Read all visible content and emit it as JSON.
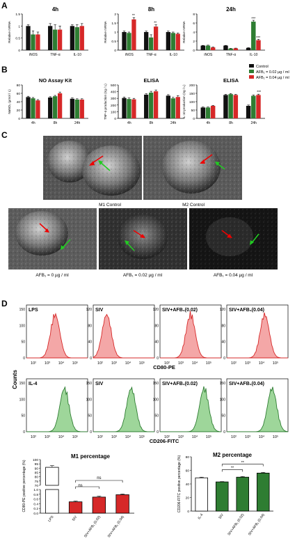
{
  "panel_letters": [
    "A",
    "B",
    "C",
    "D"
  ],
  "legend": {
    "items": [
      {
        "label": "Control",
        "color": "#000000"
      },
      {
        "label": "AFB₁ = 0.02 µg / ml",
        "color": "#2e7d32"
      },
      {
        "label": "AFB₁ = 0.04 µg / ml",
        "color": "#d32f2f"
      }
    ]
  },
  "colors": {
    "control": "#111111",
    "afb002": "#2e7d32",
    "afb004": "#d62828",
    "hist_red_fill": "#f4a7a7",
    "hist_red_line": "#d62828",
    "hist_green_fill": "#9ed69a",
    "hist_green_line": "#2e7d32"
  },
  "panelC": {
    "top_labels": [
      "M1 Control",
      "M2 Control"
    ],
    "bottom_labels": [
      "AFB₁ = 0 µg / ml",
      "AFB₁ = 0.02 µg / ml",
      "AFB₁ = 0.04 µg / ml"
    ]
  },
  "panelD": {
    "counts_label": "Counts",
    "row1_xlabel": "CD80-PE",
    "row2_xlabel": "CD206-FITC",
    "row1_titles": [
      "LPS",
      "SIV",
      "SIV+AFB₁(0.02)",
      "SIV+AFB₁(0.04)"
    ],
    "row2_titles": [
      "IL-4",
      "SIV",
      "SIV+AFB₁(0.02)",
      "SIV+AFB₁(0.04)"
    ],
    "y_ticks_per_hist": [
      [
        "0",
        "50",
        "100",
        "150"
      ],
      [
        "0",
        "40",
        "80",
        "120"
      ],
      [
        "0",
        "40",
        "80",
        "120"
      ],
      [
        "0",
        "40",
        "80",
        "120"
      ],
      [
        "0",
        "50",
        "100",
        "150"
      ],
      [
        "0",
        "50",
        "100",
        "150"
      ],
      [
        "0",
        "50",
        "100",
        "150"
      ],
      [
        "0",
        "50",
        "100",
        "150"
      ]
    ],
    "x_ticks": [
      "10²",
      "10³",
      "10⁴",
      "10⁵"
    ]
  },
  "chart_data": [
    {
      "id": "A-4h",
      "type": "bar",
      "title": "4h",
      "ylabel": "Relative mRNA",
      "categories": [
        "iNOS",
        "TNF-α",
        "IL-10"
      ],
      "ylim": [
        0,
        1.5
      ],
      "yticks": [
        0,
        0.5,
        1.0,
        1.5
      ],
      "series": [
        {
          "name": "Control",
          "values": [
            1.0,
            1.0,
            1.0
          ],
          "errors": [
            0.05,
            0.1,
            0.05
          ]
        },
        {
          "name": "AFB₁ = 0.02 µg / ml",
          "values": [
            0.65,
            0.85,
            0.95
          ],
          "errors": [
            0.15,
            0.2,
            0.1
          ]
        },
        {
          "name": "AFB₁ = 0.04 µg / ml",
          "values": [
            0.65,
            0.85,
            1.0
          ],
          "errors": [
            0.1,
            0.15,
            0.1
          ]
        }
      ]
    },
    {
      "id": "A-8h",
      "type": "bar",
      "title": "8h",
      "ylabel": "Relative mRNA",
      "categories": [
        "iNOS",
        "TNF-α",
        "IL-10"
      ],
      "ylim": [
        0,
        2.0
      ],
      "yticks": [
        0,
        0.5,
        1.0,
        1.5,
        2.0
      ],
      "series": [
        {
          "name": "Control",
          "values": [
            1.0,
            1.0,
            1.0
          ],
          "errors": [
            0.05,
            0.05,
            0.05
          ]
        },
        {
          "name": "AFB₁ = 0.02 µg / ml",
          "values": [
            0.95,
            0.7,
            0.95
          ],
          "errors": [
            0.05,
            0.15,
            0.05
          ]
        },
        {
          "name": "AFB₁ = 0.04 µg / ml",
          "values": [
            1.7,
            1.3,
            0.9
          ],
          "errors": [
            0.1,
            0.1,
            0.05
          ]
        }
      ],
      "annotations": [
        "**",
        "**"
      ]
    },
    {
      "id": "A-24h",
      "type": "bar",
      "title": "24h",
      "ylabel": "Relative mRNA",
      "categories": [
        "iNOS",
        "TNF-α",
        "IL-10"
      ],
      "ylim": [
        0,
        8
      ],
      "yticks": [
        0,
        2,
        4,
        6,
        8
      ],
      "series": [
        {
          "name": "Control",
          "values": [
            1.0,
            1.0,
            0.5
          ],
          "errors": [
            0.05,
            0.05,
            0.05
          ]
        },
        {
          "name": "AFB₁ = 0.02 µg / ml",
          "values": [
            1.0,
            0.35,
            6.3
          ],
          "errors": [
            0.1,
            0.05,
            0.3
          ]
        },
        {
          "name": "AFB₁ = 0.04 µg / ml",
          "values": [
            0.6,
            0.4,
            2.2
          ],
          "errors": [
            0.1,
            0.05,
            0.2
          ]
        }
      ],
      "annotations": [
        "***",
        "***"
      ]
    },
    {
      "id": "B-NO",
      "type": "bar",
      "title": "NO Assay Kit",
      "ylabel": "NaNO₂ (µmol / L)",
      "categories": [
        "4h",
        "8h",
        "24h"
      ],
      "ylim": [
        0,
        80
      ],
      "yticks": [
        0,
        20,
        40,
        60,
        80
      ],
      "series": [
        {
          "name": "Control",
          "values": [
            51,
            50,
            47
          ],
          "errors": [
            2,
            2,
            2
          ]
        },
        {
          "name": "AFB₁ = 0.02 µg / ml",
          "values": [
            48,
            53,
            45
          ],
          "errors": [
            2,
            2,
            2
          ]
        },
        {
          "name": "AFB₁ = 0.04 µg / ml",
          "values": [
            43,
            60,
            45
          ],
          "errors": [
            2,
            3,
            2
          ]
        }
      ]
    },
    {
      "id": "B-TNF",
      "type": "bar",
      "title": "ELISA",
      "ylabel": "TNF-α production (ng / L)",
      "categories": [
        "4h",
        "8h",
        "24h"
      ],
      "ylim": [
        0,
        500
      ],
      "yticks": [
        0,
        100,
        200,
        300,
        400,
        500
      ],
      "series": [
        {
          "name": "Control",
          "values": [
            305,
            355,
            340
          ],
          "errors": [
            15,
            15,
            15
          ]
        },
        {
          "name": "AFB₁ = 0.02 µg / ml",
          "values": [
            290,
            385,
            300
          ],
          "errors": [
            15,
            20,
            15
          ]
        },
        {
          "name": "AFB₁ = 0.04 µg / ml",
          "values": [
            285,
            405,
            320
          ],
          "errors": [
            15,
            20,
            20
          ]
        }
      ]
    },
    {
      "id": "B-IL10",
      "type": "bar",
      "title": "ELISA",
      "ylabel": "IL-10 production (ng / L)",
      "categories": [
        "4h",
        "8h",
        "24h"
      ],
      "ylim": [
        0,
        200
      ],
      "yticks": [
        0,
        50,
        100,
        150,
        200
      ],
      "series": [
        {
          "name": "Control",
          "values": [
            65,
            140,
            75
          ],
          "errors": [
            3,
            4,
            5
          ]
        },
        {
          "name": "AFB₁ = 0.02 µg / ml",
          "values": [
            65,
            145,
            135
          ],
          "errors": [
            3,
            4,
            5
          ]
        },
        {
          "name": "AFB₁ = 0.04 µg / ml",
          "values": [
            75,
            140,
            140
          ],
          "errors": [
            3,
            4,
            5
          ]
        }
      ],
      "annotations": [
        "***"
      ]
    },
    {
      "id": "D-M1",
      "type": "bar",
      "title": "M1 percentage",
      "ylabel": "CD80-PE positive percentage (%)",
      "categories": [
        "LPS",
        "SIV",
        "SIV+AFB₁ (0.02)",
        "SIV+AFB₁ (0.04)"
      ],
      "values": [
        91,
        0.48,
        0.68,
        0.78
      ],
      "errors": [
        2,
        0.03,
        0.04,
        0.03
      ],
      "fills": [
        "#ffffff",
        "#d62828",
        "#d62828",
        "#d62828"
      ],
      "yticks_top": [
        "70",
        "75",
        "80",
        "85",
        "90",
        "95",
        "100"
      ],
      "yticks_bottom": [
        "0.0",
        "0.2",
        "0.4",
        "0.6",
        "0.8",
        "1.0"
      ],
      "significance": [
        "ns",
        "ns"
      ]
    },
    {
      "id": "D-M2",
      "type": "bar",
      "title": "M2 percentage",
      "ylabel": "CD206-FITC positive percentage (%)",
      "categories": [
        "IL-4",
        "SIV",
        "SIV+AFB₁ (0.02)",
        "SIV+AFB₁ (0.04)"
      ],
      "values": [
        49,
        43,
        50,
        56
      ],
      "errors": [
        1,
        0.5,
        1,
        1
      ],
      "fills": [
        "#ffffff",
        "#2e7d32",
        "#2e7d32",
        "#2e7d32"
      ],
      "ylim": [
        0,
        80
      ],
      "yticks": [
        0,
        20,
        40,
        60,
        80
      ],
      "significance": [
        "**",
        "**"
      ]
    }
  ]
}
